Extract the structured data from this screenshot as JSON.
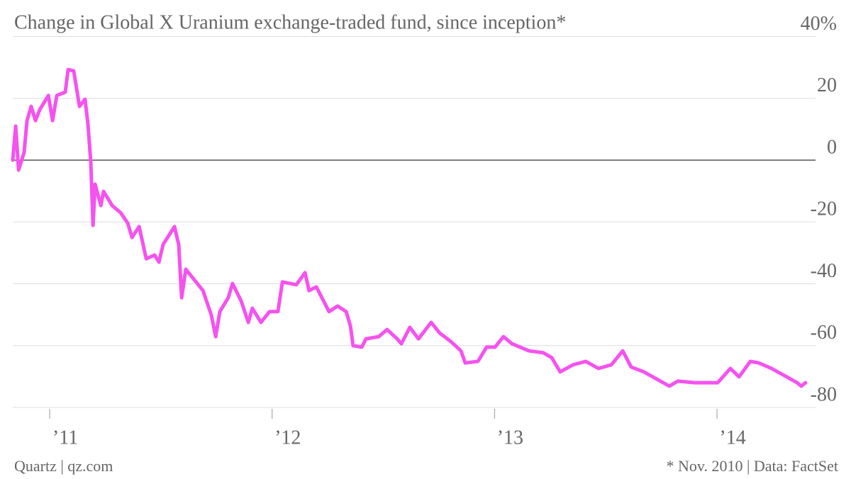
{
  "chart_data": {
    "type": "line",
    "title": "Change in Global X Uranium exchange-traded fund, since inception*",
    "source": "Quartz | qz.com",
    "note": "* Nov. 2010 | Data: FactSet",
    "xlim": [
      2010.834,
      2014.443
    ],
    "ylim": [
      -80,
      40
    ],
    "xticks": [
      {
        "value": 2011,
        "label": "’11"
      },
      {
        "value": 2012,
        "label": "’12"
      },
      {
        "value": 2013,
        "label": "’13"
      },
      {
        "value": 2014,
        "label": "’14"
      }
    ],
    "yticks": [
      {
        "value": 40,
        "label": "40%"
      },
      20,
      0,
      -20,
      -40,
      -60,
      -80
    ],
    "grid": true,
    "series": [
      {
        "color": "#f552ef",
        "x": [
          2010.834,
          2010.847,
          2010.86,
          2010.885,
          2010.898,
          2010.917,
          2010.936,
          2010.955,
          2010.994,
          2011.013,
          2011.032,
          2011.07,
          2011.083,
          2011.108,
          2011.134,
          2011.159,
          2011.172,
          2011.185,
          2011.195,
          2011.204,
          2011.23,
          2011.242,
          2011.281,
          2011.319,
          2011.351,
          2011.37,
          2011.402,
          2011.434,
          2011.472,
          2011.491,
          2011.51,
          2011.561,
          2011.58,
          2011.593,
          2011.612,
          2011.65,
          2011.689,
          2011.727,
          2011.746,
          2011.765,
          2011.803,
          2011.822,
          2011.861,
          2011.893,
          2011.911,
          2011.95,
          2011.988,
          2012.026,
          2012.046,
          2012.109,
          2012.148,
          2012.166,
          2012.199,
          2012.256,
          2012.294,
          2012.333,
          2012.352,
          2012.364,
          2012.403,
          2012.422,
          2012.479,
          2012.517,
          2012.562,
          2012.581,
          2012.619,
          2012.658,
          2012.715,
          2012.753,
          2012.804,
          2012.849,
          2012.868,
          2012.925,
          2012.964,
          2013.002,
          2013.04,
          2013.078,
          2013.155,
          2013.219,
          2013.257,
          2013.295,
          2013.353,
          2013.41,
          2013.467,
          2013.525,
          2013.576,
          2013.614,
          2013.671,
          2013.729,
          2013.786,
          2013.824,
          2013.901,
          2013.965,
          2014.003,
          2014.06,
          2014.099,
          2014.15,
          2014.188,
          2014.245,
          2014.303,
          2014.36,
          2014.379,
          2014.398
        ],
        "values": [
          0,
          11.0,
          -3.2,
          2.5,
          12.8,
          17.4,
          12.8,
          16.3,
          20.9,
          12.8,
          20.9,
          22.0,
          29.3,
          28.9,
          17.4,
          19.7,
          11.7,
          -0.9,
          -21.1,
          -7.8,
          -14.7,
          -10.1,
          -14.7,
          -17.0,
          -20.4,
          -25.0,
          -21.5,
          -31.9,
          -30.7,
          -33.0,
          -27.3,
          -21.5,
          -27.3,
          -44.5,
          -35.3,
          -38.7,
          -42.2,
          -50.2,
          -57.1,
          -49.0,
          -44.5,
          -39.9,
          -45.6,
          -52.5,
          -47.9,
          -52.5,
          -49.0,
          -49.0,
          -39.4,
          -40.3,
          -36.4,
          -42.2,
          -41.0,
          -49.0,
          -47.2,
          -49.0,
          -53.6,
          -60.0,
          -60.5,
          -57.8,
          -57.1,
          -54.8,
          -57.8,
          -59.4,
          -54.1,
          -57.8,
          -52.5,
          -55.9,
          -58.7,
          -61.7,
          -65.6,
          -65.1,
          -60.5,
          -60.5,
          -57.1,
          -59.4,
          -61.7,
          -62.3,
          -63.9,
          -68.5,
          -66.2,
          -65.1,
          -67.4,
          -66.2,
          -61.7,
          -66.9,
          -68.5,
          -70.8,
          -73.1,
          -71.5,
          -72.0,
          -72.0,
          -72.0,
          -67.4,
          -70.1,
          -65.1,
          -65.6,
          -67.4,
          -69.7,
          -72.0,
          -73.1,
          -72.0
        ]
      }
    ]
  }
}
